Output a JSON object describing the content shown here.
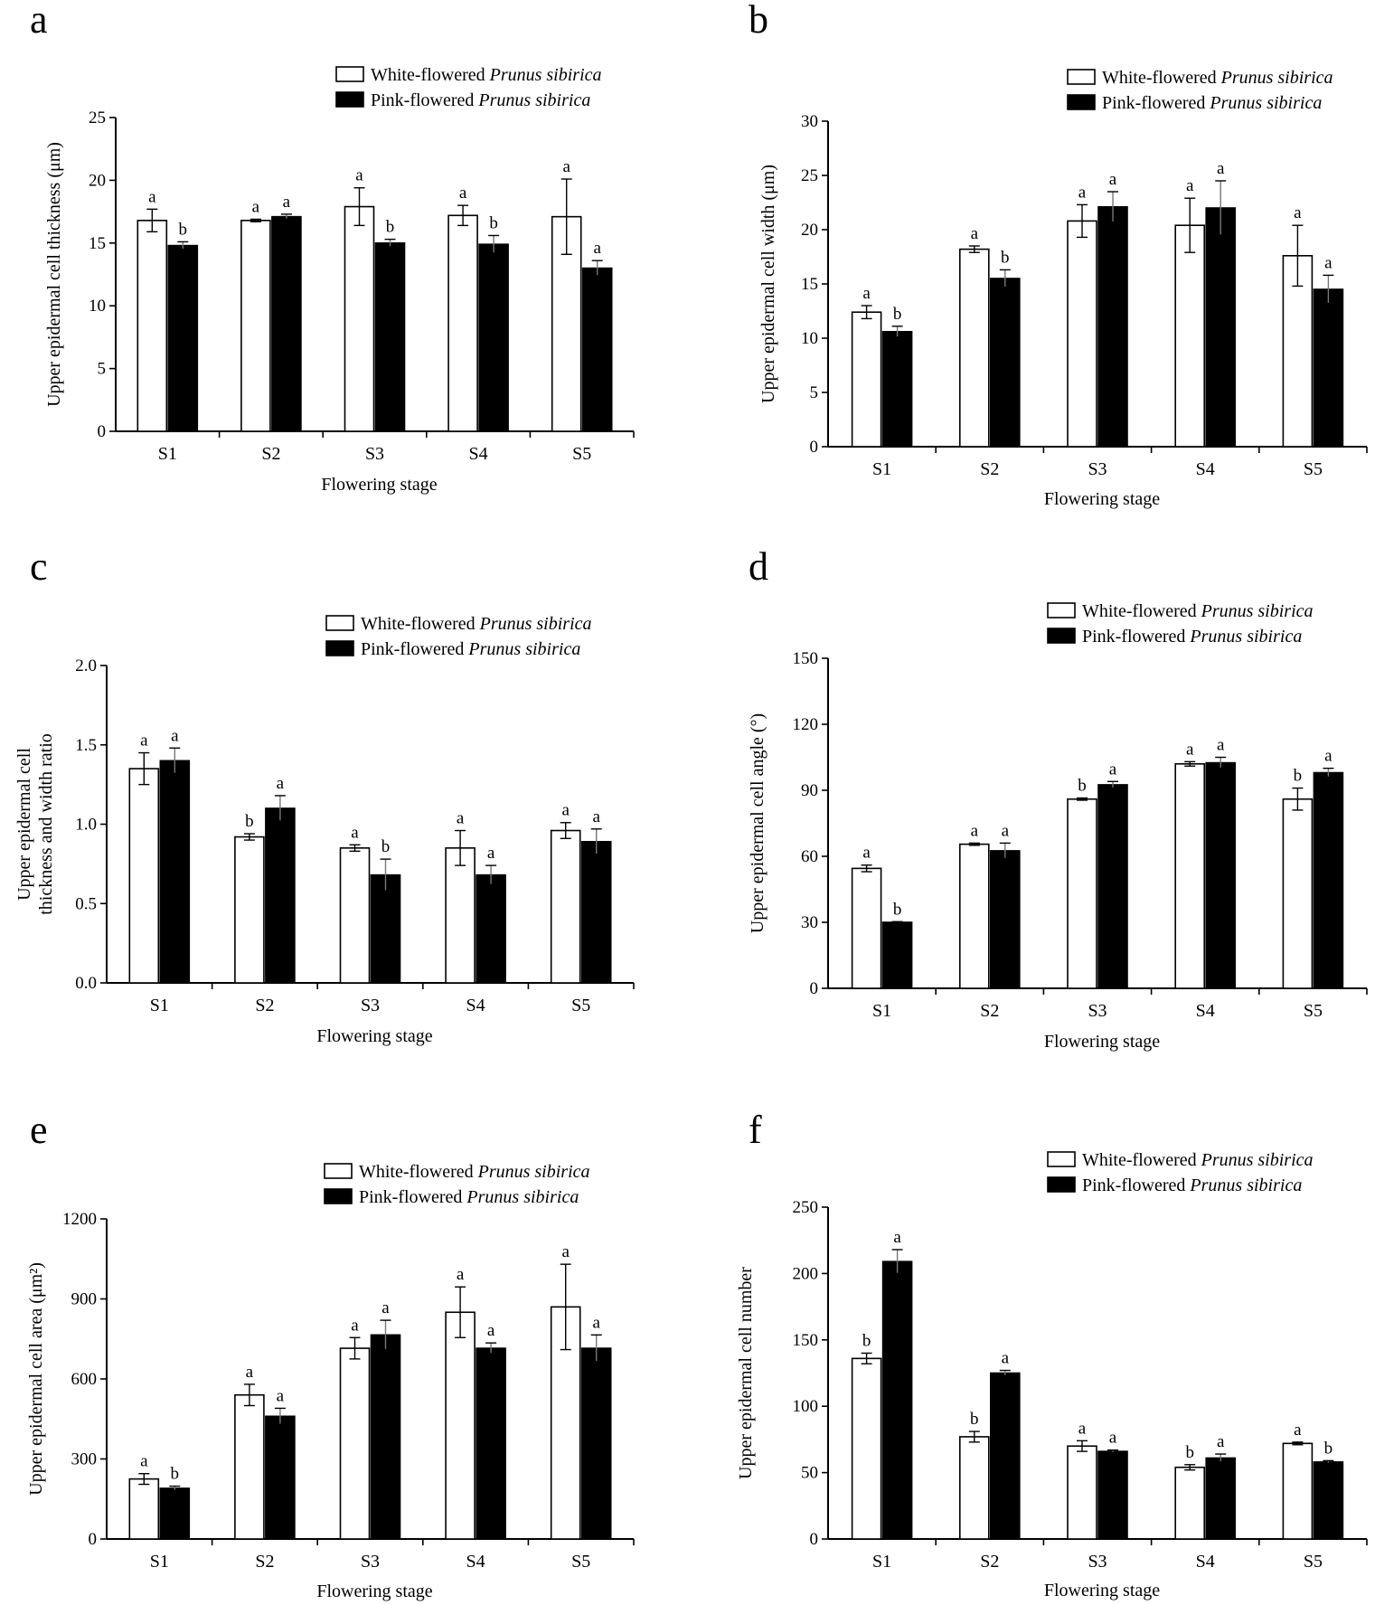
{
  "figure": {
    "legend": {
      "white_prefix": "White-flowered ",
      "pink_prefix": "Pink-flowered ",
      "species": "Prunus sibirica"
    },
    "colors": {
      "white_fill": "#ffffff",
      "pink_fill": "#000000",
      "stroke": "#000000"
    }
  },
  "chart_data": [
    {
      "panel": "a",
      "type": "bar",
      "title": "",
      "xlabel": "Flowering stage",
      "ylabel": "Upper epidermal cell thickness (μm)",
      "ylim": [
        0,
        25
      ],
      "yticks": [
        "0",
        "5",
        "10",
        "15",
        "20",
        "25"
      ],
      "categories": [
        "S1",
        "S2",
        "S3",
        "S4",
        "S5"
      ],
      "series": [
        {
          "name": "White-flowered Prunus sibirica",
          "values": [
            16.8,
            16.8,
            17.9,
            17.2,
            17.1
          ],
          "errors": [
            0.9,
            0.1,
            1.5,
            0.8,
            3.0
          ],
          "letters": [
            "a",
            "a",
            "a",
            "a",
            "a"
          ]
        },
        {
          "name": "Pink-flowered Prunus sibirica",
          "values": [
            14.8,
            17.1,
            15.0,
            14.9,
            13.0
          ],
          "errors": [
            0.3,
            0.2,
            0.3,
            0.7,
            0.6
          ],
          "letters": [
            "b",
            "a",
            "b",
            "b",
            "a"
          ]
        }
      ]
    },
    {
      "panel": "b",
      "type": "bar",
      "title": "",
      "xlabel": "Flowering stage",
      "ylabel": "Upper epidermal cell width (μm)",
      "ylim": [
        0,
        30
      ],
      "yticks": [
        "0",
        "5",
        "10",
        "15",
        "20",
        "25",
        "30"
      ],
      "categories": [
        "S1",
        "S2",
        "S3",
        "S4",
        "S5"
      ],
      "series": [
        {
          "name": "White-flowered Prunus sibirica",
          "values": [
            12.4,
            18.2,
            20.8,
            20.4,
            17.6
          ],
          "errors": [
            0.6,
            0.3,
            1.5,
            2.5,
            2.8
          ],
          "letters": [
            "a",
            "a",
            "a",
            "a",
            "a"
          ]
        },
        {
          "name": "Pink-flowered Prunus sibirica",
          "values": [
            10.6,
            15.5,
            22.1,
            22.0,
            14.5
          ],
          "errors": [
            0.5,
            0.8,
            1.4,
            2.5,
            1.3
          ],
          "letters": [
            "b",
            "b",
            "a",
            "a",
            "a"
          ]
        }
      ]
    },
    {
      "panel": "c",
      "type": "bar",
      "title": "",
      "xlabel": "Flowering stage",
      "ylabel": [
        "Upper epidermal cell",
        "thickness and width ratio"
      ],
      "ylim": [
        0,
        2.0
      ],
      "yticks": [
        "0.0",
        "0.5",
        "1.0",
        "1.5",
        "2.0"
      ],
      "categories": [
        "S1",
        "S2",
        "S3",
        "S4",
        "S5"
      ],
      "series": [
        {
          "name": "White-flowered Prunus sibirica",
          "values": [
            1.35,
            0.92,
            0.85,
            0.85,
            0.96
          ],
          "errors": [
            0.1,
            0.02,
            0.02,
            0.11,
            0.05
          ],
          "letters": [
            "a",
            "b",
            "a",
            "a",
            "a"
          ]
        },
        {
          "name": "Pink-flowered Prunus sibirica",
          "values": [
            1.4,
            1.1,
            0.68,
            0.68,
            0.89
          ],
          "errors": [
            0.08,
            0.08,
            0.1,
            0.06,
            0.08
          ],
          "letters": [
            "a",
            "a",
            "b",
            "a",
            "a"
          ]
        }
      ]
    },
    {
      "panel": "d",
      "type": "bar",
      "title": "",
      "xlabel": "Flowering stage",
      "ylabel": "Upper epidermal cell angle (°)",
      "ylim": [
        0,
        150
      ],
      "yticks": [
        "0",
        "30",
        "60",
        "90",
        "120",
        "150"
      ],
      "categories": [
        "S1",
        "S2",
        "S3",
        "S4",
        "S5"
      ],
      "series": [
        {
          "name": "White-flowered Prunus sibirica",
          "values": [
            54.5,
            65.5,
            86.0,
            102.0,
            86.0
          ],
          "errors": [
            1.5,
            0.5,
            0.5,
            1.0,
            5.0
          ],
          "letters": [
            "a",
            "a",
            "b",
            "a",
            "b"
          ]
        },
        {
          "name": "Pink-flowered Prunus sibirica",
          "values": [
            30.0,
            62.5,
            92.5,
            102.5,
            98.0
          ],
          "errors": [
            0.3,
            3.5,
            1.5,
            2.5,
            2.0
          ],
          "letters": [
            "b",
            "a",
            "a",
            "a",
            "a"
          ]
        }
      ]
    },
    {
      "panel": "e",
      "type": "bar",
      "title": "",
      "xlabel": "Flowering stage",
      "ylabel": "Upper epidermal cell area (μm²)",
      "ylim": [
        0,
        1200
      ],
      "yticks": [
        "0",
        "300",
        "600",
        "900",
        "1200"
      ],
      "categories": [
        "S1",
        "S2",
        "S3",
        "S4",
        "S5"
      ],
      "series": [
        {
          "name": "White-flowered Prunus sibirica",
          "values": [
            225,
            540,
            715,
            850,
            870
          ],
          "errors": [
            20,
            40,
            40,
            95,
            160
          ],
          "letters": [
            "a",
            "a",
            "a",
            "a",
            "a"
          ]
        },
        {
          "name": "Pink-flowered Prunus sibirica",
          "values": [
            190,
            460,
            765,
            715,
            715
          ],
          "errors": [
            8,
            30,
            55,
            20,
            50
          ],
          "letters": [
            "b",
            "a",
            "a",
            "a",
            "a"
          ]
        }
      ]
    },
    {
      "panel": "f",
      "type": "bar",
      "title": "",
      "xlabel": "Flowering stage",
      "ylabel": "Upper epidermal cell number",
      "ylim": [
        0,
        250
      ],
      "yticks": [
        "0",
        "50",
        "100",
        "150",
        "200",
        "250"
      ],
      "categories": [
        "S1",
        "S2",
        "S3",
        "S4",
        "S5"
      ],
      "series": [
        {
          "name": "White-flowered Prunus sibirica",
          "values": [
            136,
            77,
            70,
            54,
            72
          ],
          "errors": [
            4,
            4,
            4,
            2,
            1
          ],
          "letters": [
            "b",
            "b",
            "a",
            "b",
            "a"
          ]
        },
        {
          "name": "Pink-flowered Prunus sibirica",
          "values": [
            209,
            125,
            66,
            61,
            58
          ],
          "errors": [
            9,
            2,
            1,
            3,
            1
          ],
          "letters": [
            "a",
            "a",
            "a",
            "a",
            "b"
          ]
        }
      ]
    }
  ]
}
